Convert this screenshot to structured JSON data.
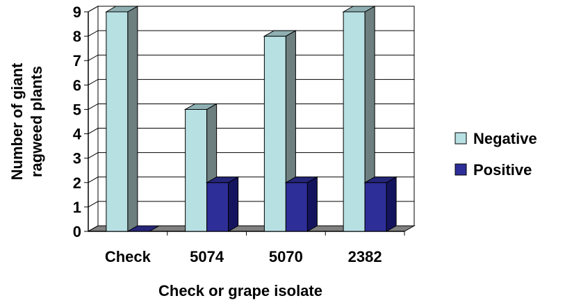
{
  "chart_data": {
    "type": "bar",
    "style": "3d-clustered-column",
    "categories": [
      "Check",
      "5074",
      "5070",
      "2382"
    ],
    "series": [
      {
        "name": "Negative",
        "values": [
          9,
          5,
          8,
          9
        ],
        "color": "#B7E0E3"
      },
      {
        "name": "Positive",
        "values": [
          0,
          2,
          2,
          2
        ],
        "color": "#2E2E99"
      }
    ],
    "ylim": [
      0,
      9
    ],
    "yticks": [
      "0",
      "1",
      "2",
      "3",
      "4",
      "5",
      "6",
      "7",
      "8",
      "9"
    ],
    "xlabel": "Check or grape isolate",
    "ylabel_lines": [
      "Number of giant",
      "ragweed plants"
    ],
    "grid": true,
    "legend_position": "right"
  }
}
